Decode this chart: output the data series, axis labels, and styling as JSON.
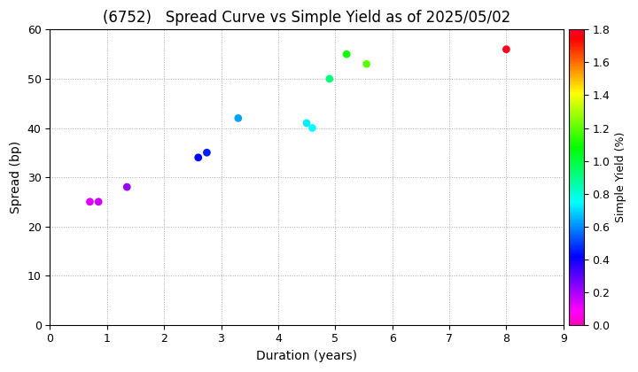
{
  "title": "(6752)   Spread Curve vs Simple Yield as of 2025/05/02",
  "xlabel": "Duration (years)",
  "ylabel": "Spread (bp)",
  "colorbar_label": "Simple Yield (%)",
  "xlim": [
    0,
    9
  ],
  "ylim": [
    0,
    60
  ],
  "xticks": [
    0,
    1,
    2,
    3,
    4,
    5,
    6,
    7,
    8,
    9
  ],
  "yticks": [
    0,
    10,
    20,
    30,
    40,
    50,
    60
  ],
  "colorbar_range": [
    0.0,
    1.8
  ],
  "colorbar_ticks": [
    0.0,
    0.2,
    0.4,
    0.6,
    0.8,
    1.0,
    1.2,
    1.4,
    1.6,
    1.8
  ],
  "points": [
    {
      "duration": 0.7,
      "spread": 25,
      "yield": 0.12
    },
    {
      "duration": 0.85,
      "spread": 25,
      "yield": 0.15
    },
    {
      "duration": 1.35,
      "spread": 28,
      "yield": 0.22
    },
    {
      "duration": 2.6,
      "spread": 34,
      "yield": 0.42
    },
    {
      "duration": 2.75,
      "spread": 35,
      "yield": 0.45
    },
    {
      "duration": 3.3,
      "spread": 42,
      "yield": 0.62
    },
    {
      "duration": 4.5,
      "spread": 41,
      "yield": 0.72
    },
    {
      "duration": 4.6,
      "spread": 40,
      "yield": 0.75
    },
    {
      "duration": 4.9,
      "spread": 50,
      "yield": 0.92
    },
    {
      "duration": 5.2,
      "spread": 55,
      "yield": 1.1
    },
    {
      "duration": 5.55,
      "spread": 53,
      "yield": 1.2
    },
    {
      "duration": 8.0,
      "spread": 56,
      "yield": 1.78
    }
  ],
  "marker_size": 40,
  "background_color": "#ffffff",
  "grid_color": "#aaaaaa",
  "title_fontsize": 12,
  "axis_fontsize": 10,
  "tick_fontsize": 9,
  "colorbar_fontsize": 9
}
